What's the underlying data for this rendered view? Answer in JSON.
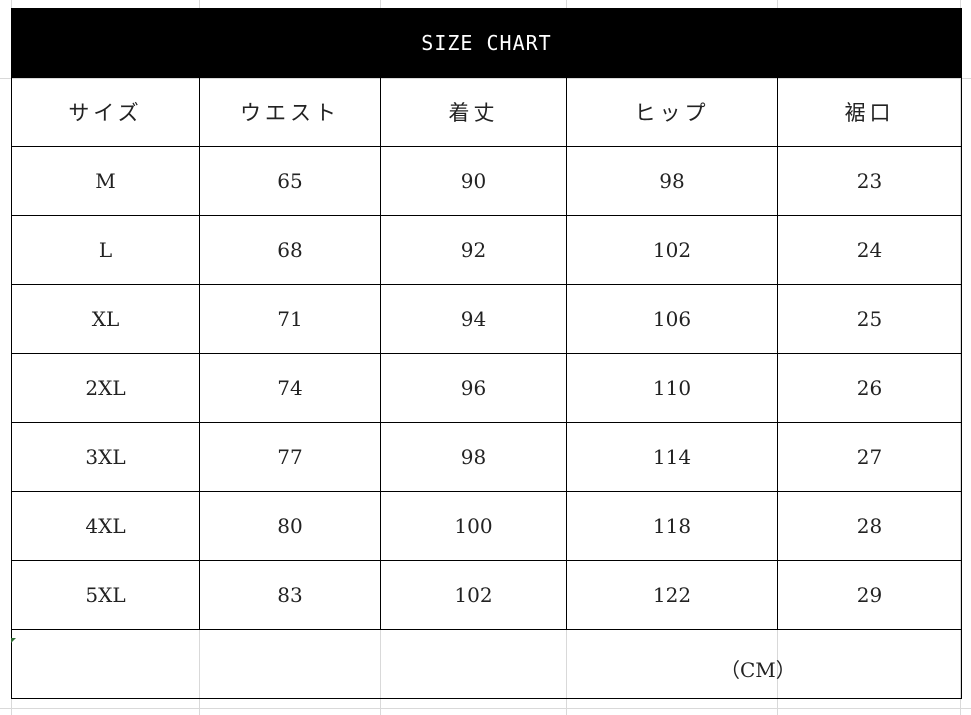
{
  "title": "SIZE  CHART",
  "headers": [
    "サイズ",
    "ウエスト",
    "着丈",
    "ヒップ",
    "裾口"
  ],
  "rows": [
    [
      "M",
      "65",
      "90",
      "98",
      "23"
    ],
    [
      "L",
      "68",
      "92",
      "102",
      "24"
    ],
    [
      "XL",
      "71",
      "94",
      "106",
      "25"
    ],
    [
      "2XL",
      "74",
      "96",
      "110",
      "26"
    ],
    [
      "3XL",
      "77",
      "98",
      "114",
      "27"
    ],
    [
      "4XL",
      "80",
      "100",
      "118",
      "28"
    ],
    [
      "5XL",
      "83",
      "102",
      "122",
      "29"
    ]
  ],
  "unit": "（CM）"
}
